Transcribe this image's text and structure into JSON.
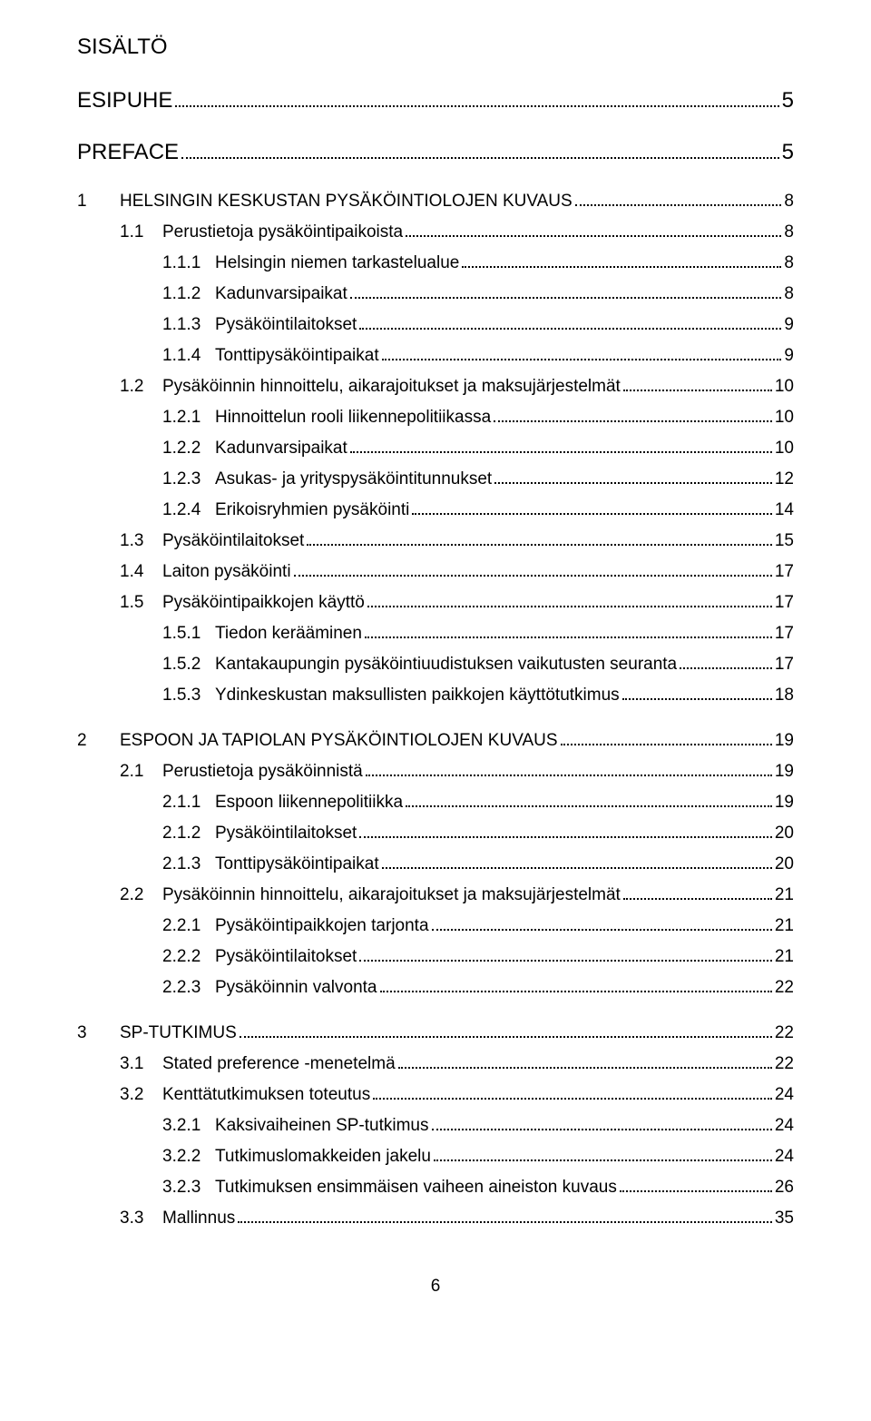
{
  "doc_title": "SISÄLTÖ",
  "page_number": "6",
  "colors": {
    "text": "#000000",
    "background": "#ffffff"
  },
  "typography": {
    "font_family": "Arial",
    "title_fontsize_pt": 18,
    "body_fontsize_pt": 14
  },
  "toc": [
    {
      "level": "top",
      "num": "",
      "label": "ESIPUHE",
      "page": "5",
      "gap": true
    },
    {
      "level": "top",
      "num": "",
      "label": "PREFACE",
      "page": "5",
      "gap": true
    },
    {
      "level": "1",
      "num": "1",
      "label": "HELSINGIN KESKUSTAN PYSÄKÖINTIOLOJEN KUVAUS",
      "page": "8",
      "gap": true
    },
    {
      "level": "2",
      "num": "1.1",
      "label": "Perustietoja pysäköintipaikoista",
      "page": "8"
    },
    {
      "level": "3",
      "num": "1.1.1",
      "label": "Helsingin niemen tarkastelualue",
      "page": "8"
    },
    {
      "level": "3",
      "num": "1.1.2",
      "label": "Kadunvarsipaikat",
      "page": "8"
    },
    {
      "level": "3",
      "num": "1.1.3",
      "label": "Pysäköintilaitokset",
      "page": "9"
    },
    {
      "level": "3",
      "num": "1.1.4",
      "label": "Tonttipysäköintipaikat",
      "page": "9"
    },
    {
      "level": "2",
      "num": "1.2",
      "label": "Pysäköinnin hinnoittelu, aikarajoitukset ja maksujärjestelmät",
      "page": "10"
    },
    {
      "level": "3",
      "num": "1.2.1",
      "label": "Hinnoittelun rooli liikennepolitiikassa",
      "page": "10"
    },
    {
      "level": "3",
      "num": "1.2.2",
      "label": "Kadunvarsipaikat",
      "page": "10"
    },
    {
      "level": "3",
      "num": "1.2.3",
      "label": "Asukas- ja yrityspysäköintitunnukset",
      "page": "12"
    },
    {
      "level": "3",
      "num": "1.2.4",
      "label": "Erikoisryhmien pysäköinti",
      "page": "14"
    },
    {
      "level": "2",
      "num": "1.3",
      "label": "Pysäköintilaitokset",
      "page": "15"
    },
    {
      "level": "2",
      "num": "1.4",
      "label": "Laiton pysäköinti",
      "page": "17"
    },
    {
      "level": "2",
      "num": "1.5",
      "label": "Pysäköintipaikkojen käyttö",
      "page": "17"
    },
    {
      "level": "3",
      "num": "1.5.1",
      "label": "Tiedon kerääminen",
      "page": "17"
    },
    {
      "level": "3",
      "num": "1.5.2",
      "label": "Kantakaupungin pysäköintiuudistuksen vaikutusten seuranta",
      "page": "17"
    },
    {
      "level": "3",
      "num": "1.5.3",
      "label": "Ydinkeskustan maksullisten paikkojen käyttötutkimus",
      "page": "18"
    },
    {
      "level": "1",
      "num": "2",
      "label": "ESPOON JA TAPIOLAN PYSÄKÖINTIOLOJEN KUVAUS",
      "page": "19",
      "gap": true
    },
    {
      "level": "2",
      "num": "2.1",
      "label": "Perustietoja pysäköinnistä",
      "page": "19"
    },
    {
      "level": "3",
      "num": "2.1.1",
      "label": "Espoon liikennepolitiikka",
      "page": "19"
    },
    {
      "level": "3",
      "num": "2.1.2",
      "label": "Pysäköintilaitokset",
      "page": "20"
    },
    {
      "level": "3",
      "num": "2.1.3",
      "label": "Tonttipysäköintipaikat",
      "page": "20"
    },
    {
      "level": "2",
      "num": "2.2",
      "label": "Pysäköinnin hinnoittelu, aikarajoitukset ja maksujärjestelmät",
      "page": "21"
    },
    {
      "level": "3",
      "num": "2.2.1",
      "label": "Pysäköintipaikkojen tarjonta",
      "page": "21"
    },
    {
      "level": "3",
      "num": "2.2.2",
      "label": "Pysäköintilaitokset",
      "page": "21"
    },
    {
      "level": "3",
      "num": "2.2.3",
      "label": "Pysäköinnin valvonta",
      "page": "22"
    },
    {
      "level": "1",
      "num": "3",
      "label": "SP-TUTKIMUS",
      "page": "22",
      "gap": true
    },
    {
      "level": "2",
      "num": "3.1",
      "label": "Stated preference -menetelmä",
      "page": "22"
    },
    {
      "level": "2",
      "num": "3.2",
      "label": "Kenttätutkimuksen toteutus",
      "page": "24"
    },
    {
      "level": "3",
      "num": "3.2.1",
      "label": "Kaksivaiheinen SP-tutkimus",
      "page": "24"
    },
    {
      "level": "3",
      "num": "3.2.2",
      "label": "Tutkimuslomakkeiden jakelu",
      "page": "24"
    },
    {
      "level": "3",
      "num": "3.2.3",
      "label": "Tutkimuksen ensimmäisen vaiheen aineiston kuvaus",
      "page": "26"
    },
    {
      "level": "2",
      "num": "3.3",
      "label": "Mallinnus",
      "page": "35"
    }
  ]
}
